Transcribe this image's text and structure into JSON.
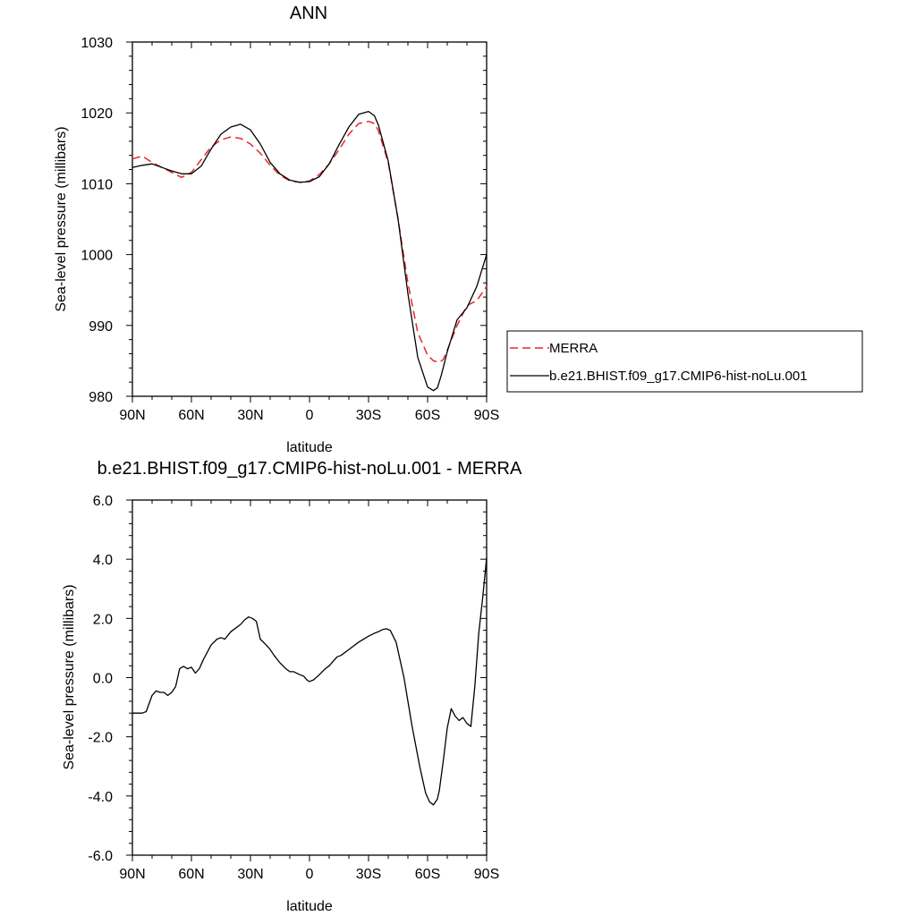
{
  "chart_data": [
    {
      "type": "line",
      "title": "ANN",
      "xlabel": "latitude",
      "ylabel": "Sea-level pressure (millibars)",
      "xlim": [
        -90,
        90
      ],
      "ylim": [
        980,
        1030
      ],
      "x_ticks": [
        -90,
        -60,
        -30,
        0,
        30,
        60,
        90
      ],
      "x_tick_labels": [
        "90N",
        "60N",
        "30N",
        "0",
        "30S",
        "60S",
        "90S"
      ],
      "y_ticks": [
        980,
        990,
        1000,
        1010,
        1020,
        1030
      ],
      "y_tick_labels": [
        "980",
        "990",
        "1000",
        "1010",
        "1020",
        "1030"
      ],
      "grid": false,
      "legend_position": "right",
      "series": [
        {
          "name": "MERRA",
          "color": "#e8262a",
          "dash": "dashed",
          "x": [
            -90,
            -85,
            -80,
            -75,
            -70,
            -65,
            -60,
            -55,
            -50,
            -45,
            -40,
            -35,
            -30,
            -25,
            -20,
            -15,
            -10,
            -5,
            0,
            5,
            10,
            15,
            20,
            25,
            30,
            33,
            35,
            40,
            45,
            50,
            55,
            60,
            63,
            66,
            68,
            70,
            75,
            80,
            85,
            90
          ],
          "y": [
            1013.5,
            1013.9,
            1013.0,
            1012.3,
            1011.6,
            1010.9,
            1011.6,
            1013.4,
            1015.2,
            1016.2,
            1016.6,
            1016.4,
            1015.6,
            1014.3,
            1012.6,
            1011.2,
            1010.4,
            1010.2,
            1010.4,
            1011.3,
            1012.8,
            1014.8,
            1017.0,
            1018.5,
            1018.8,
            1018.5,
            1017.5,
            1013.0,
            1005.0,
            996.0,
            989.0,
            985.8,
            985.0,
            984.8,
            985.2,
            986.5,
            990.0,
            992.8,
            993.5,
            995.5
          ]
        },
        {
          "name": "b.e21.BHIST.f09_g17.CMIP6-hist-noLu.001",
          "color": "#000000",
          "dash": "solid",
          "x": [
            -90,
            -85,
            -80,
            -75,
            -70,
            -65,
            -60,
            -55,
            -50,
            -45,
            -40,
            -35,
            -30,
            -25,
            -20,
            -15,
            -10,
            -5,
            0,
            5,
            10,
            15,
            20,
            25,
            30,
            33,
            35,
            40,
            45,
            50,
            55,
            60,
            63,
            65,
            67,
            70,
            75,
            80,
            85,
            90
          ],
          "y": [
            1012.3,
            1012.6,
            1012.8,
            1012.3,
            1011.8,
            1011.4,
            1011.4,
            1012.5,
            1014.9,
            1017.0,
            1018.0,
            1018.4,
            1017.6,
            1015.6,
            1013.0,
            1011.4,
            1010.5,
            1010.2,
            1010.3,
            1011.0,
            1012.8,
            1015.5,
            1018.0,
            1019.8,
            1020.2,
            1019.6,
            1018.3,
            1013.2,
            1005.0,
            994.5,
            985.5,
            981.3,
            980.8,
            981.2,
            983.0,
            986.3,
            990.8,
            992.5,
            995.5,
            1000.0
          ]
        }
      ]
    },
    {
      "type": "line",
      "title": "b.e21.BHIST.f09_g17.CMIP6-hist-noLu.001 - MERRA",
      "xlabel": "latitude",
      "ylabel": "Sea-level pressure (millibars)",
      "xlim": [
        -90,
        90
      ],
      "ylim": [
        -6.0,
        6.0
      ],
      "x_ticks": [
        -90,
        -60,
        -30,
        0,
        30,
        60,
        90
      ],
      "x_tick_labels": [
        "90N",
        "60N",
        "30N",
        "0",
        "30S",
        "60S",
        "90S"
      ],
      "y_ticks": [
        -6,
        -4,
        -2,
        0,
        2,
        4,
        6
      ],
      "y_tick_labels": [
        "-6.0",
        "-4.0",
        "-2.0",
        "0.0",
        "2.0",
        "4.0",
        "6.0"
      ],
      "grid": false,
      "series": [
        {
          "color": "#000000",
          "dash": "solid",
          "x": [
            -90,
            -85,
            -83,
            -80,
            -78,
            -76,
            -74,
            -72,
            -70,
            -68,
            -66,
            -64,
            -62,
            -60,
            -58,
            -56,
            -54,
            -50,
            -47,
            -45,
            -43,
            -40,
            -37,
            -35,
            -33,
            -31,
            -29,
            -27,
            -25,
            -22,
            -20,
            -18,
            -15,
            -12,
            -10,
            -8,
            -5,
            -3,
            -1,
            0,
            2,
            5,
            8,
            10,
            12,
            14,
            16,
            20,
            25,
            30,
            33,
            35,
            37,
            39,
            41,
            44,
            48,
            52,
            56,
            59,
            61,
            63,
            65,
            66,
            68,
            70,
            72,
            74,
            76,
            78,
            80,
            82,
            84,
            86,
            88,
            90
          ],
          "y": [
            -1.2,
            -1.2,
            -1.15,
            -0.6,
            -0.45,
            -0.5,
            -0.5,
            -0.6,
            -0.5,
            -0.3,
            0.3,
            0.38,
            0.3,
            0.35,
            0.15,
            0.3,
            0.6,
            1.1,
            1.3,
            1.35,
            1.3,
            1.55,
            1.7,
            1.8,
            1.95,
            2.05,
            2.0,
            1.9,
            1.3,
            1.1,
            0.95,
            0.75,
            0.5,
            0.3,
            0.2,
            0.2,
            0.1,
            0.05,
            -0.1,
            -0.13,
            -0.08,
            0.1,
            0.3,
            0.4,
            0.55,
            0.7,
            0.75,
            0.95,
            1.2,
            1.4,
            1.5,
            1.55,
            1.62,
            1.65,
            1.6,
            1.2,
            0.0,
            -1.6,
            -3.0,
            -3.9,
            -4.2,
            -4.3,
            -4.1,
            -3.8,
            -2.8,
            -1.7,
            -1.05,
            -1.3,
            -1.45,
            -1.35,
            -1.55,
            -1.65,
            -0.3,
            1.5,
            2.7,
            4.05
          ]
        }
      ]
    }
  ]
}
